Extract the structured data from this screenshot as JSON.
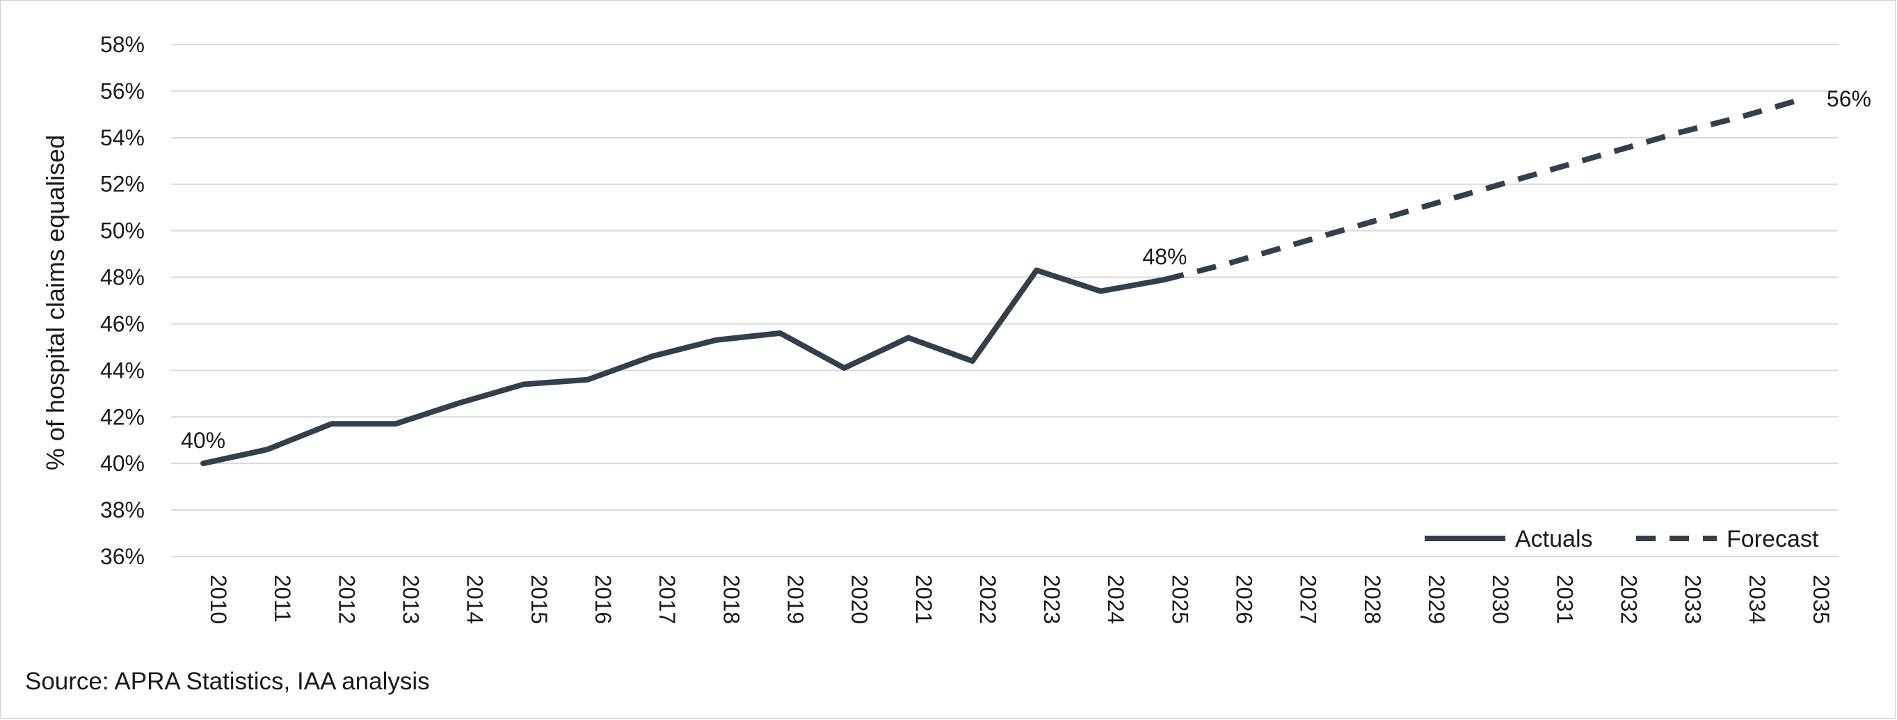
{
  "chart_data": {
    "type": "line",
    "title": "",
    "xlabel": "",
    "ylabel": "% of hospital claims equalised",
    "ylim": [
      0.36,
      0.58
    ],
    "yticks": [
      "36%",
      "38%",
      "40%",
      "42%",
      "44%",
      "46%",
      "48%",
      "50%",
      "52%",
      "54%",
      "56%",
      "58%"
    ],
    "categories": [
      "2010",
      "2011",
      "2012",
      "2013",
      "2014",
      "2015",
      "2016",
      "2017",
      "2018",
      "2019",
      "2020",
      "2021",
      "2022",
      "2023",
      "2024",
      "2025",
      "2026",
      "2027",
      "2028",
      "2029",
      "2030",
      "2031",
      "2032",
      "2033",
      "2034",
      "2035"
    ],
    "series": [
      {
        "name": "Actuals",
        "style": "solid",
        "x": [
          "2010",
          "2011",
          "2012",
          "2013",
          "2014",
          "2015",
          "2016",
          "2017",
          "2018",
          "2019",
          "2020",
          "2021",
          "2022",
          "2023",
          "2024",
          "2025"
        ],
        "values": [
          0.4,
          0.406,
          0.417,
          0.417,
          0.426,
          0.434,
          0.436,
          0.446,
          0.453,
          0.456,
          0.441,
          0.454,
          0.444,
          0.483,
          0.474,
          0.479
        ]
      },
      {
        "name": "Forecast",
        "style": "dashed",
        "x": [
          "2025",
          "2026",
          "2027",
          "2028",
          "2029",
          "2030",
          "2031",
          "2032",
          "2033",
          "2034",
          "2035"
        ],
        "values": [
          0.479,
          0.486,
          0.494,
          0.502,
          0.51,
          0.518,
          0.526,
          0.534,
          0.542,
          0.549,
          0.557
        ]
      }
    ],
    "annotations": [
      {
        "text": "40%",
        "x": "2010",
        "y": 0.4
      },
      {
        "text": "48%",
        "x": "2025",
        "y": 0.479
      },
      {
        "text": "56%",
        "x": "2035",
        "y": 0.557
      }
    ],
    "grid": true,
    "legend_position": "bottom-right",
    "colors": {
      "line": "#333f4b",
      "grid": "#d9d9d9",
      "text": "#1a1a1a"
    }
  },
  "source_note": "Source: APRA Statistics, IAA analysis"
}
